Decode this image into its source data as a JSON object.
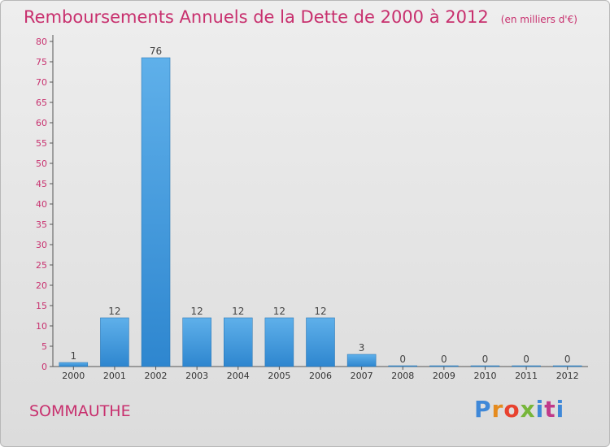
{
  "header": {
    "title": "Remboursements Annuels de la Dette de 2000 à 2012",
    "subtitle": "(en milliers d'€)"
  },
  "commune": "SOMMAUTHE",
  "brand": {
    "name": "Proxiti",
    "colors": [
      "#3f88d8",
      "#e58b1e",
      "#e8422f",
      "#77b63a",
      "#3f88d8",
      "#c03a8a"
    ]
  },
  "chart_data": {
    "type": "bar",
    "title": "Remboursements Annuels de la Dette de 2000 à 2012",
    "subtitle": "(en milliers d'€)",
    "xlabel": "",
    "ylabel": "",
    "categories": [
      "2000",
      "2001",
      "2002",
      "2003",
      "2004",
      "2005",
      "2006",
      "2007",
      "2008",
      "2009",
      "2010",
      "2011",
      "2012"
    ],
    "values": [
      1,
      12,
      76,
      12,
      12,
      12,
      12,
      3,
      0,
      0,
      0,
      0,
      0
    ],
    "data_labels": [
      "1",
      "12",
      "76",
      "12",
      "12",
      "12",
      "12",
      "3",
      "0",
      "0",
      "0",
      "0",
      "0"
    ],
    "ylim": [
      0,
      80
    ],
    "yticks": [
      0,
      5,
      10,
      15,
      20,
      25,
      30,
      35,
      40,
      45,
      50,
      55,
      60,
      65,
      70,
      75,
      80
    ],
    "grid": false,
    "legend": "none",
    "bar_color": "#2e86cf",
    "bar_color_light": "#5fb0ea",
    "axis_label_color": "#c8306e"
  }
}
